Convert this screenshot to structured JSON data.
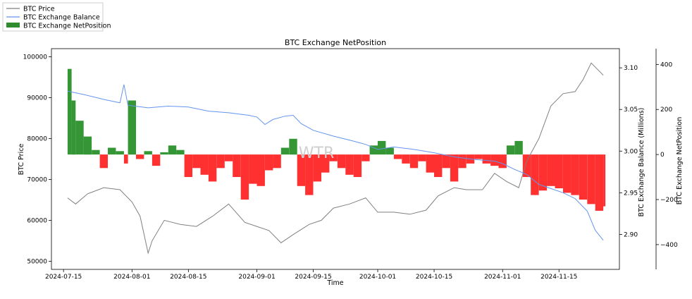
{
  "chart_data": {
    "type": "line",
    "title": "BTC Exchange NetPosition",
    "xlabel": "Time",
    "y_left_label": "BTC Price",
    "y_right1_label": "BTC Exchange Balance (Millions)",
    "y_right2_label": "BTC Exchange NetPosition",
    "watermark": "WTR",
    "x_range": [
      "2024-07-12",
      "2024-11-30"
    ],
    "x_ticks": [
      "2024-07-15",
      "2024-08-01",
      "2024-08-15",
      "2024-09-01",
      "2024-09-15",
      "2024-10-01",
      "2024-10-15",
      "2024-11-01",
      "2024-11-15"
    ],
    "y_left_range": [
      48000,
      102000
    ],
    "y_left_ticks": [
      50000,
      60000,
      70000,
      80000,
      90000,
      100000
    ],
    "y_right1_range": [
      2.858,
      3.123
    ],
    "y_right1_ticks": [
      2.9,
      2.95,
      3.0,
      3.05,
      3.1
    ],
    "y_right2_range": [
      -510,
      470
    ],
    "y_right2_ticks": [
      -400,
      -200,
      0,
      200,
      400
    ],
    "legend": [
      {
        "label": "BTC Price",
        "color": "#808080",
        "kind": "line"
      },
      {
        "label": "BTC Exchange Balance",
        "color": "#6495ed",
        "kind": "line"
      },
      {
        "label": "BTC Exchange NetPosition",
        "color": "#2e8b2e",
        "kind": "patch"
      }
    ],
    "legend_position": "top-left (outside axes)",
    "colors": {
      "price": "#808080",
      "balance": "#6495ed",
      "positive": "#1f8b1f",
      "negative": "#ff1a1a"
    },
    "series": [
      {
        "name": "BTC Price",
        "axis": "left",
        "x": [
          "2024-07-16",
          "2024-07-18",
          "2024-07-21",
          "2024-07-25",
          "2024-07-29",
          "2024-08-01",
          "2024-08-03",
          "2024-08-05",
          "2024-08-06",
          "2024-08-09",
          "2024-08-13",
          "2024-08-17",
          "2024-08-21",
          "2024-08-25",
          "2024-08-29",
          "2024-09-01",
          "2024-09-04",
          "2024-09-07",
          "2024-09-10",
          "2024-09-14",
          "2024-09-17",
          "2024-09-20",
          "2024-09-24",
          "2024-09-28",
          "2024-10-01",
          "2024-10-05",
          "2024-10-09",
          "2024-10-13",
          "2024-10-16",
          "2024-10-20",
          "2024-10-23",
          "2024-10-27",
          "2024-10-30",
          "2024-11-02",
          "2024-11-05",
          "2024-11-07",
          "2024-11-10",
          "2024-11-13",
          "2024-11-16",
          "2024-11-19",
          "2024-11-21",
          "2024-11-23",
          "2024-11-26"
        ],
        "y": [
          65500,
          64000,
          66500,
          68000,
          67500,
          64500,
          61000,
          52000,
          55000,
          60000,
          59000,
          58500,
          61000,
          64000,
          59500,
          58500,
          57500,
          54500,
          56500,
          59000,
          60000,
          63000,
          64000,
          65500,
          62000,
          62000,
          61500,
          62500,
          66000,
          68000,
          67500,
          67500,
          71500,
          69500,
          68000,
          74500,
          80000,
          88000,
          91000,
          91500,
          94500,
          98500,
          95500
        ]
      },
      {
        "name": "BTC Exchange Balance",
        "axis": "right1",
        "x": [
          "2024-07-16",
          "2024-07-20",
          "2024-07-25",
          "2024-07-29",
          "2024-07-30",
          "2024-07-31",
          "2024-08-05",
          "2024-08-10",
          "2024-08-15",
          "2024-08-20",
          "2024-08-25",
          "2024-08-30",
          "2024-09-01",
          "2024-09-03",
          "2024-09-05",
          "2024-09-08",
          "2024-09-10",
          "2024-09-12",
          "2024-09-15",
          "2024-09-20",
          "2024-09-25",
          "2024-09-28",
          "2024-10-01",
          "2024-10-05",
          "2024-10-10",
          "2024-10-15",
          "2024-10-20",
          "2024-10-25",
          "2024-10-30",
          "2024-11-01",
          "2024-11-04",
          "2024-11-07",
          "2024-11-10",
          "2024-11-13",
          "2024-11-16",
          "2024-11-19",
          "2024-11-22",
          "2024-11-24",
          "2024-11-26"
        ],
        "y": [
          3.072,
          3.068,
          3.062,
          3.058,
          3.08,
          3.055,
          3.052,
          3.054,
          3.053,
          3.048,
          3.046,
          3.043,
          3.041,
          3.032,
          3.038,
          3.042,
          3.043,
          3.033,
          3.025,
          3.018,
          3.012,
          3.008,
          3.002,
          3.005,
          3.002,
          2.998,
          2.993,
          2.99,
          2.988,
          2.985,
          2.978,
          2.972,
          2.96,
          2.955,
          2.95,
          2.943,
          2.928,
          2.905,
          2.893
        ]
      },
      {
        "name": "BTC Exchange NetPosition",
        "axis": "right2",
        "kind": "bars",
        "x": [
          "2024-07-16",
          "2024-07-17",
          "2024-07-18",
          "2024-07-20",
          "2024-07-22",
          "2024-07-24",
          "2024-07-26",
          "2024-07-28",
          "2024-07-30",
          "2024-07-31",
          "2024-08-02",
          "2024-08-04",
          "2024-08-06",
          "2024-08-08",
          "2024-08-10",
          "2024-08-12",
          "2024-08-14",
          "2024-08-16",
          "2024-08-18",
          "2024-08-20",
          "2024-08-22",
          "2024-08-24",
          "2024-08-26",
          "2024-08-28",
          "2024-08-30",
          "2024-09-01",
          "2024-09-03",
          "2024-09-05",
          "2024-09-07",
          "2024-09-09",
          "2024-09-11",
          "2024-09-13",
          "2024-09-15",
          "2024-09-17",
          "2024-09-19",
          "2024-09-21",
          "2024-09-23",
          "2024-09-25",
          "2024-09-27",
          "2024-09-29",
          "2024-10-01",
          "2024-10-03",
          "2024-10-05",
          "2024-10-07",
          "2024-10-09",
          "2024-10-11",
          "2024-10-13",
          "2024-10-15",
          "2024-10-17",
          "2024-10-19",
          "2024-10-21",
          "2024-10-23",
          "2024-10-25",
          "2024-10-27",
          "2024-10-29",
          "2024-10-31",
          "2024-11-02",
          "2024-11-04",
          "2024-11-06",
          "2024-11-08",
          "2024-11-10",
          "2024-11-12",
          "2024-11-14",
          "2024-11-16",
          "2024-11-18",
          "2024-11-20",
          "2024-11-22",
          "2024-11-24",
          "2024-11-26"
        ],
        "y": [
          380,
          240,
          150,
          80,
          20,
          -60,
          30,
          15,
          -40,
          240,
          -20,
          15,
          -50,
          10,
          40,
          20,
          -100,
          -60,
          -90,
          -120,
          -60,
          -30,
          -100,
          -200,
          -130,
          -140,
          -70,
          -60,
          30,
          70,
          -140,
          -180,
          -120,
          -80,
          -30,
          -60,
          -90,
          -100,
          -30,
          40,
          60,
          30,
          -20,
          -40,
          -60,
          -30,
          -80,
          -100,
          -60,
          -120,
          -60,
          -40,
          -20,
          -40,
          -50,
          -60,
          40,
          60,
          -100,
          -180,
          -160,
          -140,
          -150,
          -170,
          -180,
          -200,
          -220,
          -250,
          -230
        ]
      }
    ]
  }
}
